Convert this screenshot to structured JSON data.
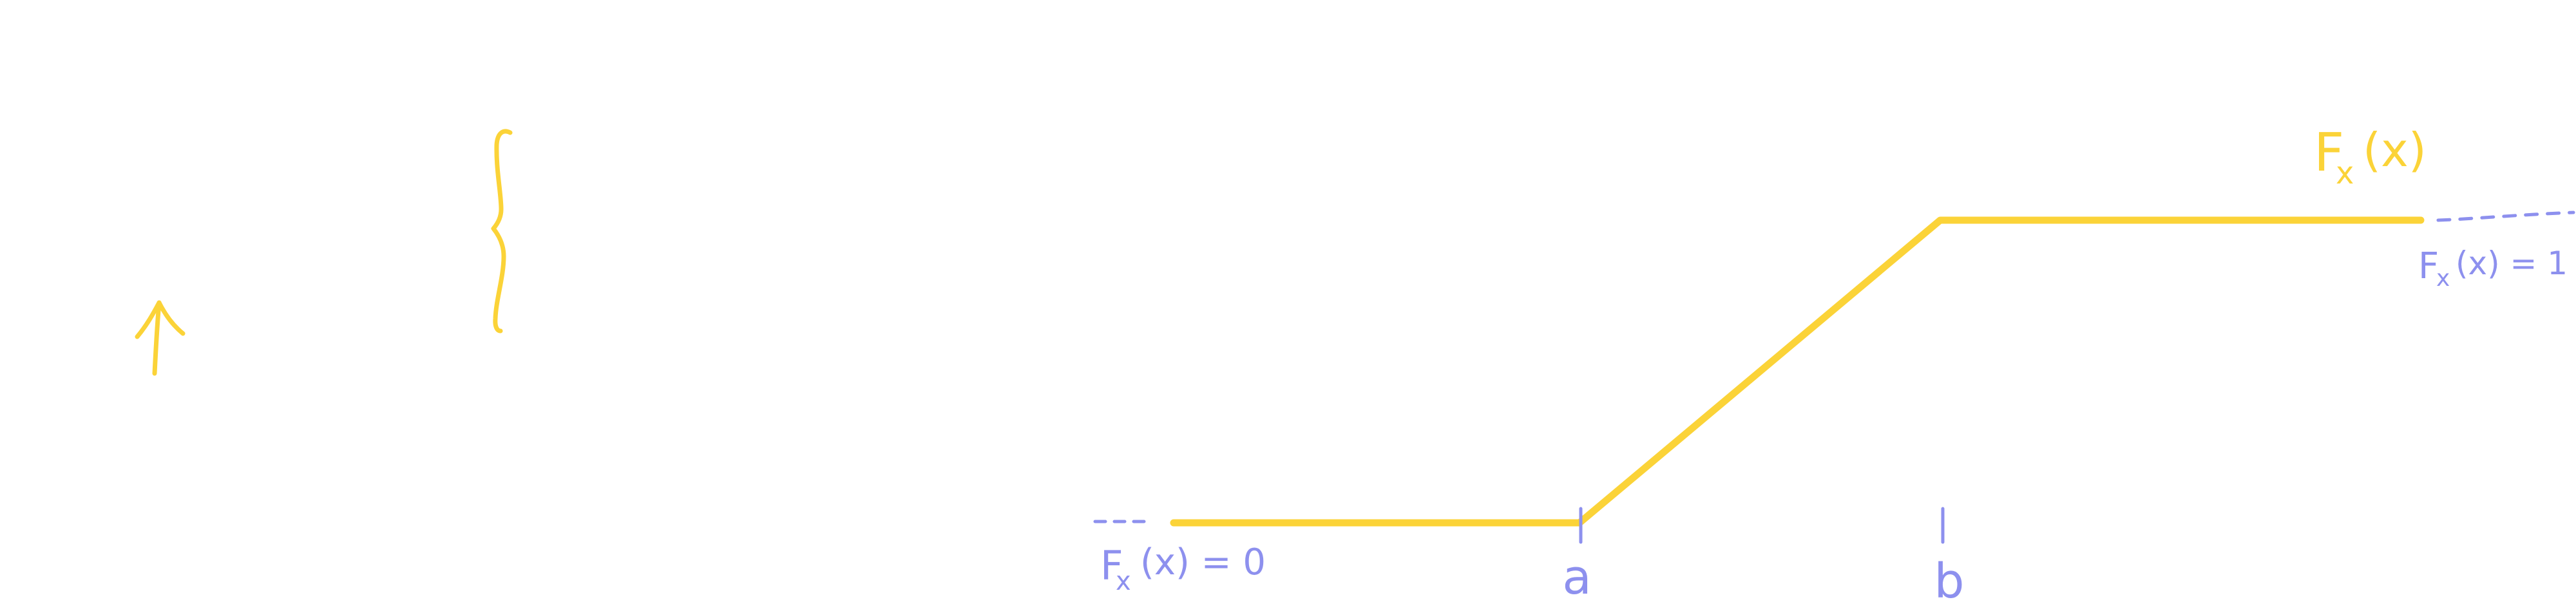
{
  "colors": {
    "cdf": "#fbd338",
    "annotation": "#8d90ee",
    "background": "#ffffff"
  },
  "labels": {
    "fx_name": "F",
    "fx_subscript": "x",
    "fx_arg": "(x)",
    "left_value_name": "F",
    "left_value_subscript": "x",
    "left_value_expr": "(x) = 0",
    "right_value_name": "F",
    "right_value_subscript": "x",
    "right_value_expr": "(x) = 1",
    "tick_a": "a",
    "tick_b": "b"
  },
  "icons": {
    "up_arrow": "up-arrow-icon",
    "brace": "curly-brace-icon"
  }
}
